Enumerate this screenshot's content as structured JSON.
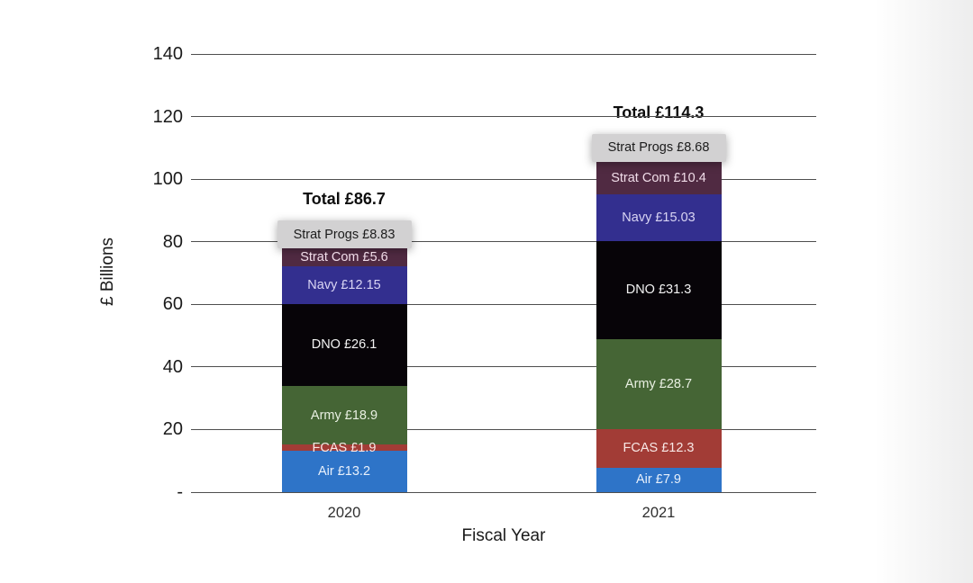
{
  "chart_data": {
    "type": "bar",
    "stacked": true,
    "xlabel": "Fiscal Year",
    "ylabel": "£ Billions",
    "categories": [
      "2020",
      "2021"
    ],
    "series": [
      {
        "name": "Air",
        "values": [
          13.2,
          7.9
        ],
        "color": "#2e74c8",
        "text_color": "#e8f0fb"
      },
      {
        "name": "FCAS",
        "values": [
          1.9,
          12.3
        ],
        "color": "#a23c36",
        "text_color": "#f8e8e6"
      },
      {
        "name": "Army",
        "values": [
          18.9,
          28.7
        ],
        "color": "#456535",
        "text_color": "#e9f0e2"
      },
      {
        "name": "DNO",
        "values": [
          26.1,
          31.3
        ],
        "color": "#070408",
        "text_color": "#f2f2f2"
      },
      {
        "name": "Navy",
        "values": [
          12.15,
          15.03
        ],
        "color": "#332f8f",
        "text_color": "#d9d5f4"
      },
      {
        "name": "Strat Com",
        "values": [
          5.6,
          10.4
        ],
        "color": "#502a42",
        "text_color": "#f0dce8"
      },
      {
        "name": "Strat Progs",
        "values": [
          8.83,
          8.68
        ],
        "color": "#d2d1d2",
        "text_color": "#1c1c1c",
        "elevated": true
      }
    ],
    "segment_labels": [
      [
        "Air £13.2",
        "FCAS £1.9",
        "Army £18.9",
        "DNO £26.1",
        "Navy £12.15",
        "Strat Com £5.6",
        "Strat Progs £8.83"
      ],
      [
        "Air £7.9",
        "FCAS £12.3",
        "Army £28.7",
        "DNO £31.3",
        "Navy £15.03",
        "Strat Com £10.4",
        "Strat Progs £8.68"
      ]
    ],
    "totals": [
      "Total £86.7",
      "Total £114.3"
    ],
    "y_ticks": [
      "-",
      "20",
      "40",
      "60",
      "80",
      "100",
      "120",
      "140"
    ],
    "y_tick_values": [
      0,
      20,
      40,
      60,
      80,
      100,
      120,
      140
    ],
    "ylim": [
      0,
      140
    ],
    "grid": true
  }
}
